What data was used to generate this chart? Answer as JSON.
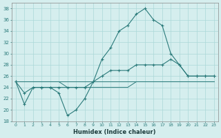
{
  "xlabel": "Humidex (Indice chaleur)",
  "x": [
    0,
    1,
    2,
    3,
    4,
    5,
    6,
    7,
    8,
    9,
    10,
    11,
    12,
    13,
    14,
    15,
    16,
    17,
    18,
    19,
    20,
    21,
    22,
    23
  ],
  "line1": [
    25,
    21,
    24,
    24,
    24,
    23,
    19,
    20,
    22,
    25,
    29,
    31,
    34,
    35,
    37,
    38,
    36,
    35,
    30,
    28,
    26,
    26,
    26,
    26
  ],
  "line2": [
    25,
    23,
    24,
    24,
    24,
    24,
    24,
    24,
    24,
    25,
    26,
    27,
    27,
    27,
    28,
    28,
    28,
    28,
    29,
    28,
    26,
    26,
    26,
    26
  ],
  "line3": [
    25,
    25,
    25,
    25,
    25,
    25,
    25,
    25,
    25,
    25,
    25,
    25,
    25,
    25,
    25,
    25,
    25,
    25,
    25,
    25,
    25,
    25,
    25,
    25
  ],
  "line4": [
    25,
    25,
    25,
    25,
    25,
    25,
    24,
    24,
    24,
    24,
    24,
    24,
    24,
    24,
    25,
    25,
    25,
    25,
    25,
    25,
    25,
    25,
    25,
    25
  ],
  "color": "#2a7a7a",
  "bg_color": "#d5eeee",
  "grid_color": "#aad8d8",
  "ylim": [
    18,
    39
  ],
  "yticks": [
    18,
    20,
    22,
    24,
    26,
    28,
    30,
    32,
    34,
    36,
    38
  ],
  "xlim": [
    -0.5,
    23.5
  ],
  "xticks": [
    0,
    1,
    2,
    3,
    4,
    5,
    6,
    7,
    8,
    9,
    10,
    11,
    12,
    13,
    14,
    15,
    16,
    17,
    18,
    19,
    20,
    21,
    22,
    23
  ]
}
